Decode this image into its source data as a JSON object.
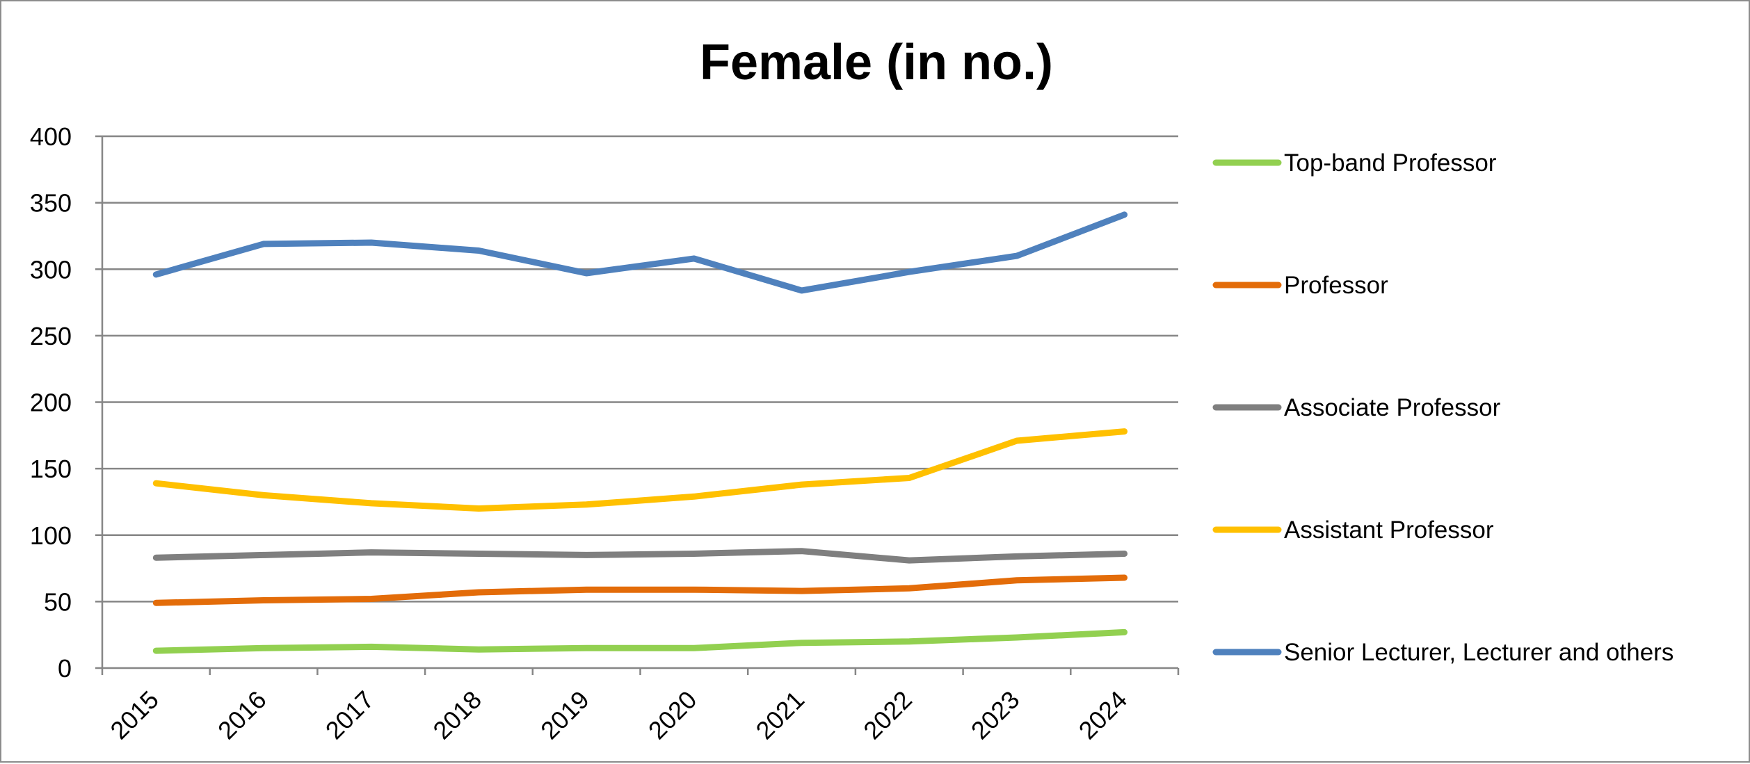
{
  "chart_data": {
    "type": "line",
    "title": "Female (in no.)",
    "xlabel": "",
    "ylabel": "",
    "x": [
      "2015",
      "2016",
      "2017",
      "2018",
      "2019",
      "2020",
      "2021",
      "2022",
      "2023",
      "2024"
    ],
    "ylim": [
      0,
      400
    ],
    "yticks": [
      "0",
      "50",
      "100",
      "150",
      "200",
      "250",
      "300",
      "350",
      "400"
    ],
    "grid": true,
    "legend_position": "right",
    "series": [
      {
        "name": "Top-band Professor",
        "color": "#92D050",
        "values": [
          13,
          15,
          16,
          14,
          15,
          15,
          19,
          20,
          23,
          27
        ]
      },
      {
        "name": "Professor",
        "color": "#E36C09",
        "values": [
          49,
          51,
          52,
          57,
          59,
          59,
          58,
          60,
          66,
          68
        ]
      },
      {
        "name": "Associate Professor",
        "color": "#7F7F7F",
        "values": [
          83,
          85,
          87,
          86,
          85,
          86,
          88,
          81,
          84,
          86
        ]
      },
      {
        "name": "Assistant Professor",
        "color": "#FFC000",
        "values": [
          139,
          130,
          124,
          120,
          123,
          129,
          138,
          143,
          171,
          178
        ]
      },
      {
        "name": "Senior Lecturer, Lecturer and others",
        "color": "#4F81BD",
        "values": [
          296,
          319,
          320,
          314,
          297,
          308,
          284,
          298,
          310,
          341
        ]
      }
    ]
  }
}
